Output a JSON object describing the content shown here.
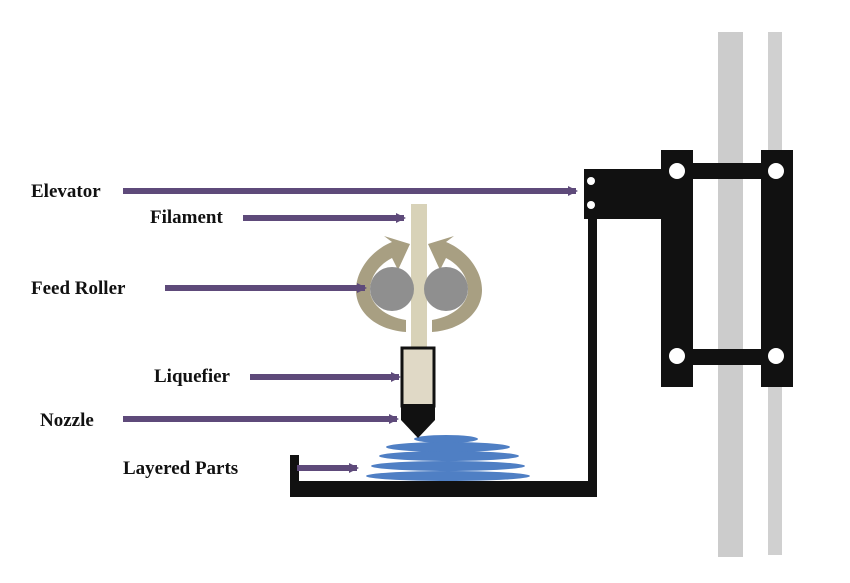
{
  "labels": {
    "elevator": "Elevator",
    "filament": "Filament",
    "feed_roller": "Feed Roller",
    "liquefier": "Liquefier",
    "nozzle": "Nozzle",
    "layered_parts": "Layered Parts"
  },
  "colors": {
    "arrow": "#5e4a7a",
    "rail": "#cccccc",
    "frame": "#111111",
    "filament": "#d8d2b8",
    "roller": "#8f8f8f",
    "rotation_arrow": "#a89f82",
    "liquefier": "#e0d9c6",
    "part": "#4f7fc4"
  }
}
